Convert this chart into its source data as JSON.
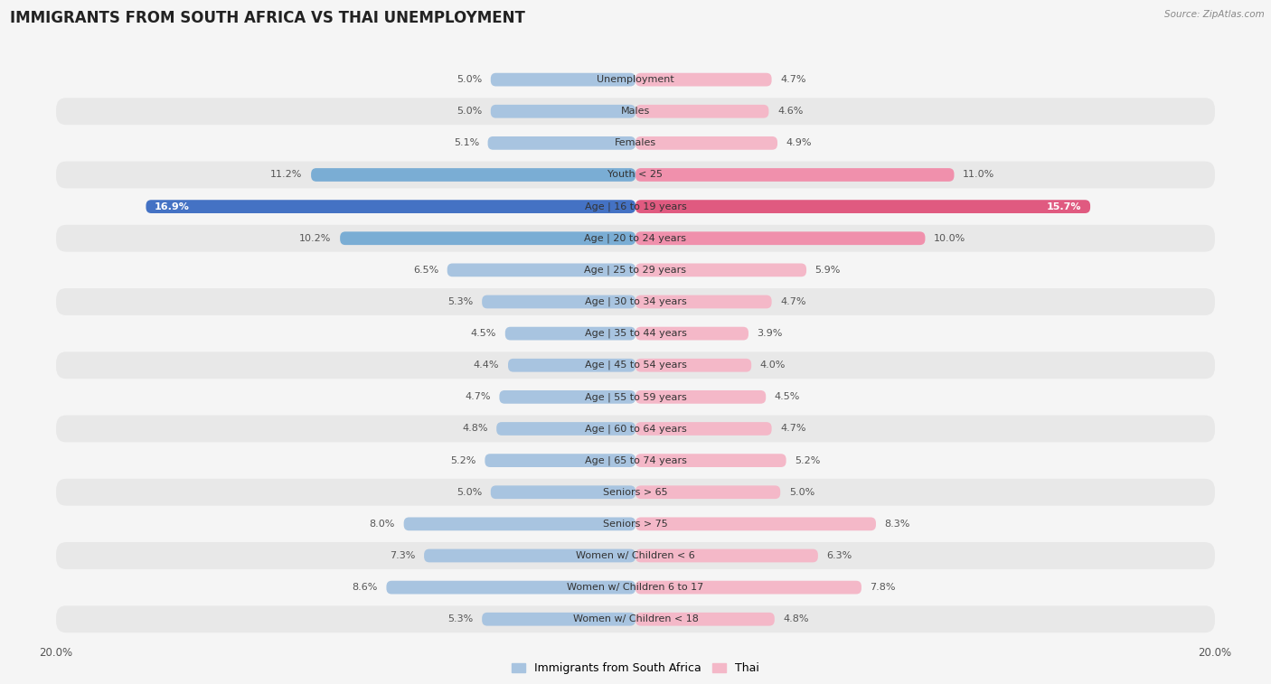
{
  "title": "IMMIGRANTS FROM SOUTH AFRICA VS THAI UNEMPLOYMENT",
  "source": "Source: ZipAtlas.com",
  "categories": [
    "Unemployment",
    "Males",
    "Females",
    "Youth < 25",
    "Age | 16 to 19 years",
    "Age | 20 to 24 years",
    "Age | 25 to 29 years",
    "Age | 30 to 34 years",
    "Age | 35 to 44 years",
    "Age | 45 to 54 years",
    "Age | 55 to 59 years",
    "Age | 60 to 64 years",
    "Age | 65 to 74 years",
    "Seniors > 65",
    "Seniors > 75",
    "Women w/ Children < 6",
    "Women w/ Children 6 to 17",
    "Women w/ Children < 18"
  ],
  "left_values": [
    5.0,
    5.0,
    5.1,
    11.2,
    16.9,
    10.2,
    6.5,
    5.3,
    4.5,
    4.4,
    4.7,
    4.8,
    5.2,
    5.0,
    8.0,
    7.3,
    8.6,
    5.3
  ],
  "right_values": [
    4.7,
    4.6,
    4.9,
    11.0,
    15.7,
    10.0,
    5.9,
    4.7,
    3.9,
    4.0,
    4.5,
    4.7,
    5.2,
    5.0,
    8.3,
    6.3,
    7.8,
    4.8
  ],
  "left_color_normal": "#a8c4e0",
  "left_color_medium": "#7aadd4",
  "left_color_highlight": "#4472c4",
  "right_color_normal": "#f4b8c8",
  "right_color_medium": "#f090ac",
  "right_color_highlight": "#e05a80",
  "highlight_indices": [
    4
  ],
  "medium_indices": [
    3,
    5
  ],
  "row_color_odd": "#f5f5f5",
  "row_color_even": "#e8e8e8",
  "bg_color": "#f5f5f5",
  "axis_limit": 20.0,
  "legend_left": "Immigrants from South Africa",
  "legend_right": "Thai",
  "title_fontsize": 12,
  "value_fontsize": 8,
  "cat_fontsize": 8
}
